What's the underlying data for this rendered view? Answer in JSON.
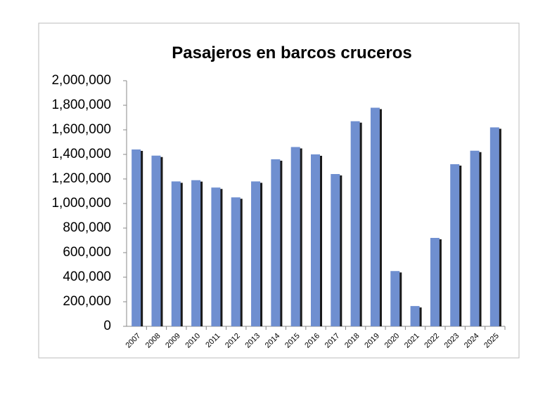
{
  "chart_data": {
    "type": "bar",
    "title": "Pasajeros en barcos cruceros",
    "categories": [
      "2007",
      "2008",
      "2009",
      "2010",
      "2011",
      "2012",
      "2013",
      "2014",
      "2015",
      "2016",
      "2017",
      "2018",
      "2019",
      "2020",
      "2021",
      "2022",
      "2023",
      "2024",
      "2025"
    ],
    "values": [
      1440000,
      1390000,
      1180000,
      1190000,
      1130000,
      1050000,
      1180000,
      1360000,
      1460000,
      1400000,
      1240000,
      1670000,
      1780000,
      450000,
      165000,
      720000,
      1320000,
      1430000,
      1620000
    ],
    "color": "#6f8fd0",
    "ylim": [
      0,
      2000000
    ],
    "yticks": [
      0,
      {
        "value": 200000,
        "label": "200,000"
      },
      {
        "value": 400000,
        "label": "400,000"
      },
      {
        "value": 600000,
        "label": "600,000"
      },
      {
        "value": 800000,
        "label": "800,000"
      },
      {
        "value": 1000000,
        "label": "1,000,000"
      },
      {
        "value": 1200000,
        "label": "1,200,000"
      },
      {
        "value": 1400000,
        "label": "1,400,000"
      },
      {
        "value": 1600000,
        "label": "1,600,000"
      },
      {
        "value": 1800000,
        "label": "1,800,000"
      },
      {
        "value": 2000000,
        "label": "2,000,000"
      }
    ],
    "grid": false
  }
}
